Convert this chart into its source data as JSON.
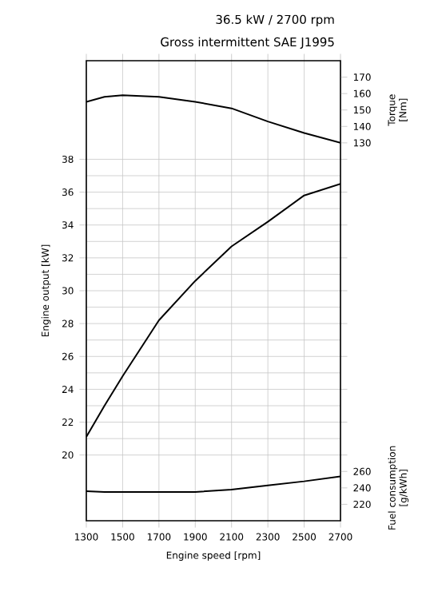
{
  "chart_data": {
    "type": "line",
    "title": "36.5 kW / 2700 rpm",
    "subtitle": "Gross intermittent SAE J1995",
    "xlabel": "Engine speed [rpm]",
    "ylabel": "Engine output [kW]",
    "y2label": "Torque [Nm]",
    "y3label": "Fuel consumption [g/kWh]",
    "x": [
      1300,
      1400,
      1500,
      1700,
      1900,
      2100,
      2300,
      2500,
      2700
    ],
    "xlim": [
      1300,
      2700
    ],
    "xticks": [
      1300,
      1500,
      1700,
      1900,
      2100,
      2300,
      2500,
      2700
    ],
    "ylim": [
      16,
      44
    ],
    "yticks": [
      20,
      22,
      24,
      26,
      28,
      30,
      32,
      34,
      36,
      38
    ],
    "y2lim": [
      -100,
      180
    ],
    "y2ticks": [
      130,
      140,
      150,
      160,
      170
    ],
    "y3lim": [
      200,
      760
    ],
    "y3ticks": [
      220,
      240,
      260
    ],
    "grid": true,
    "series": [
      {
        "color": "#000000",
        "values": [
          21.1,
          23.0,
          24.8,
          28.2,
          30.6,
          32.7,
          34.2,
          35.8,
          36.5
        ]
      },
      {
        "color": "#000000",
        "axis": "y2",
        "values": [
          155,
          158,
          159,
          158,
          155,
          151,
          143,
          136,
          130
        ]
      },
      {
        "color": "#000000",
        "axis": "y3",
        "values": [
          236,
          235,
          235,
          235,
          235,
          238,
          243,
          248,
          254
        ]
      }
    ]
  }
}
